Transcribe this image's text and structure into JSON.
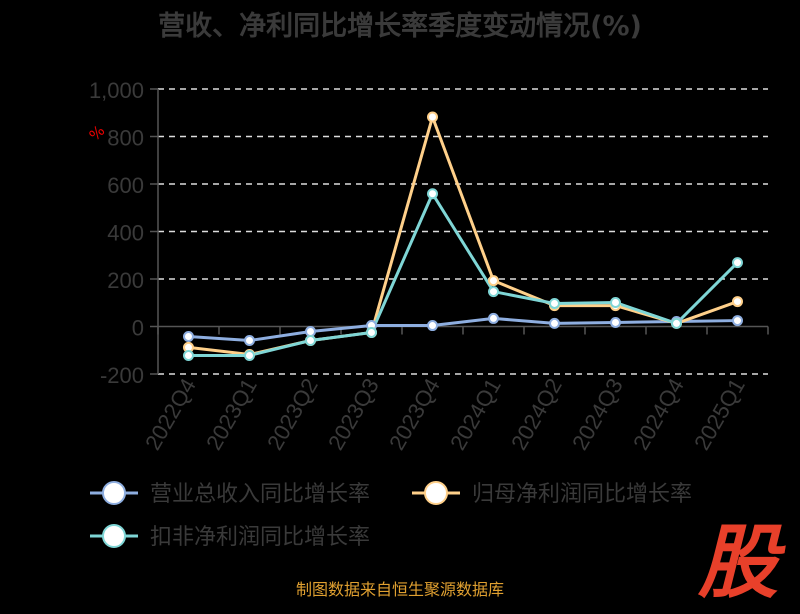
{
  "chart_data": {
    "type": "line",
    "title": "营收、净利同比增长率季度变动情况(%)",
    "ylabel": "%",
    "categories": [
      "2022Q4",
      "2023Q1",
      "2023Q2",
      "2023Q3",
      "2023Q4",
      "2024Q1",
      "2024Q2",
      "2024Q3",
      "2024Q4",
      "2025Q1"
    ],
    "ylim": [
      -200,
      1000
    ],
    "yticks": [
      -200,
      0,
      200,
      400,
      600,
      800,
      1000
    ],
    "ytick_labels": [
      "-200",
      "0",
      "200",
      "400",
      "600",
      "800",
      "1,000"
    ],
    "grid": true,
    "legend_position": "bottom",
    "series": [
      {
        "name": "营业总收入同比增长率",
        "color": "#8eaee0",
        "values": [
          -42,
          -59,
          -21,
          4,
          4,
          34,
          13,
          17,
          21,
          25
        ]
      },
      {
        "name": "归母净利润同比增长率",
        "color": "#ffd08a",
        "values": [
          -88,
          -118,
          -59,
          -25,
          882,
          193,
          88,
          88,
          13,
          105
        ]
      },
      {
        "name": "扣非净利润同比增长率",
        "color": "#7fd6d6",
        "values": [
          -122,
          -122,
          -59,
          -25,
          559,
          147,
          97,
          101,
          13,
          269
        ]
      }
    ]
  },
  "footer": "制图数据来自恒生聚源数据库",
  "logo_text": "股"
}
